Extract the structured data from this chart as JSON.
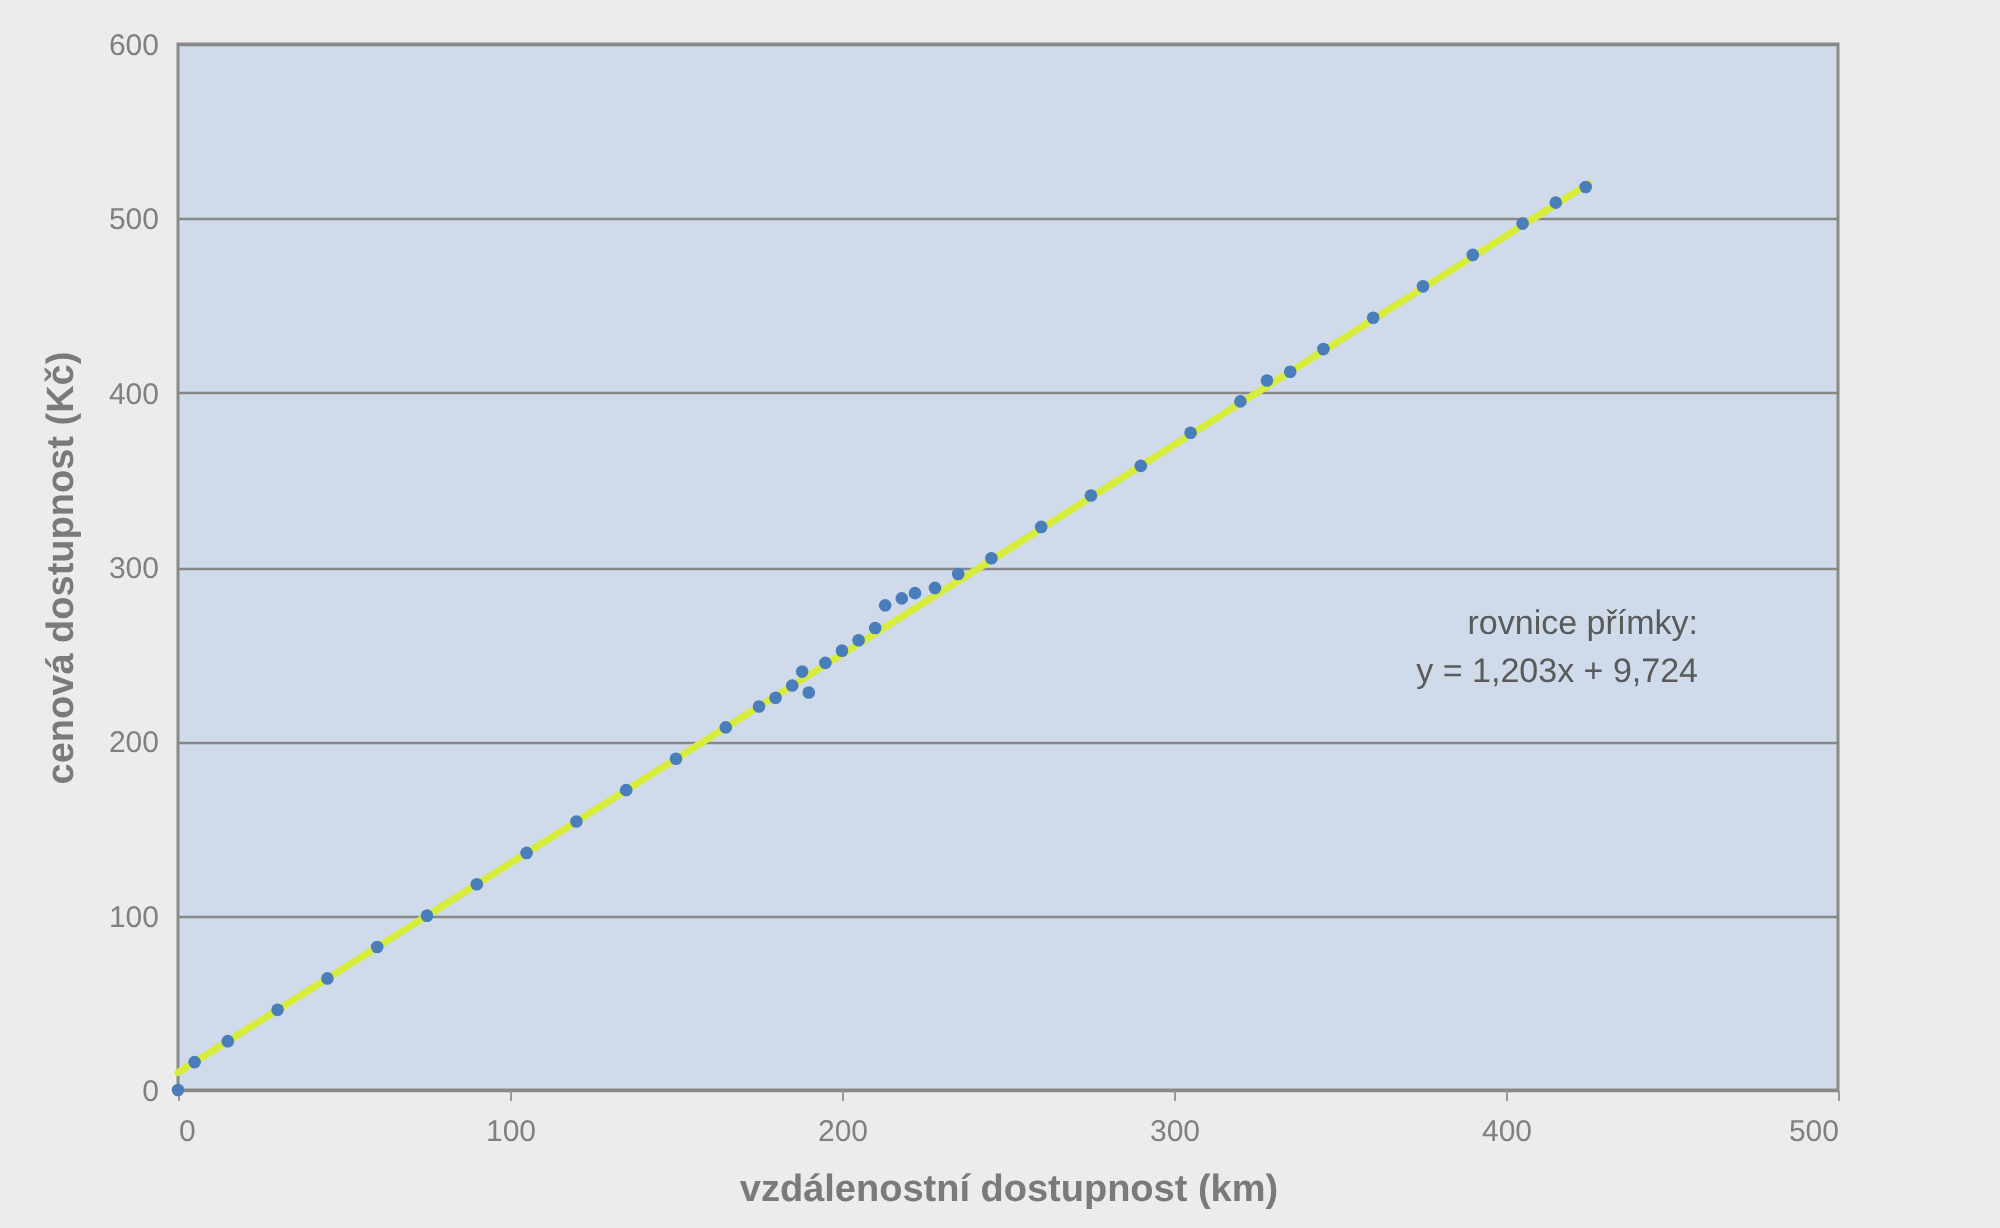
{
  "chart_data": {
    "type": "scatter",
    "xlabel": "vzdálenostní dostupnost (km)",
    "ylabel": "cenová dostupnost (Kč)",
    "xlim": [
      0,
      500
    ],
    "xticks": [
      0,
      100,
      200,
      300,
      400,
      500
    ],
    "ylim": [
      0,
      600
    ],
    "yticks": [
      0,
      100,
      200,
      300,
      400,
      500,
      600
    ],
    "grid": "y",
    "annotations": [
      "rovnice přímky:",
      "y = 1,203x + 9,724"
    ],
    "series": [
      {
        "marker": "circle",
        "color": "#4a7ebb",
        "x": [
          0,
          5,
          15,
          30,
          45,
          60,
          75,
          90,
          105,
          120,
          135,
          150,
          165,
          175,
          180,
          185,
          188,
          190,
          195,
          200,
          205,
          210,
          213,
          218,
          222,
          228,
          235,
          245,
          260,
          275,
          290,
          305,
          320,
          328,
          335,
          345,
          360,
          375,
          390,
          405,
          415,
          424
        ],
        "values": [
          0,
          16,
          28,
          46,
          64,
          82,
          100,
          118,
          136,
          154,
          172,
          190,
          208,
          220,
          225,
          232,
          240,
          228,
          245,
          252,
          258,
          265,
          278,
          282,
          285,
          288,
          296,
          305,
          323,
          341,
          358,
          377,
          395,
          407,
          412,
          425,
          443,
          461,
          479,
          497,
          509,
          518
        ]
      },
      {
        "type": "line",
        "marker": "none",
        "line_style": "solid",
        "color": "#d8ec3c",
        "x": [
          0,
          425
        ],
        "values": [
          10,
          520
        ]
      }
    ]
  }
}
